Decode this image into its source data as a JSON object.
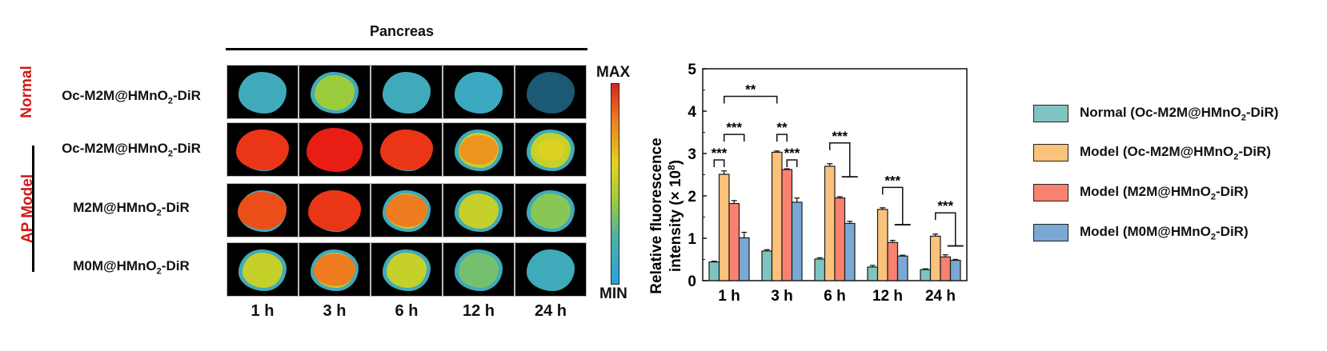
{
  "figure": {
    "left_panel": {
      "title": "Pancreas",
      "group_labels": {
        "normal": "Normal",
        "ap_model": "AP Model"
      },
      "rows": [
        {
          "pre": "Oc-M2M@HMnO",
          "sub": "2",
          "post": "-DiR",
          "group": "normal"
        },
        {
          "pre": "Oc-M2M@HMnO",
          "sub": "2",
          "post": "-DiR",
          "group": "ap_model"
        },
        {
          "pre": "M2M@HMnO",
          "sub": "2",
          "post": "-DiR",
          "group": "ap_model"
        },
        {
          "pre": "M0M@HMnO",
          "sub": "2",
          "post": "-DiR",
          "group": "ap_model"
        }
      ],
      "time_points": [
        "1 h",
        "3 h",
        "6 h",
        "12 h",
        "24 h"
      ],
      "intensity_levels": [
        [
          0.15,
          0.45,
          0.18,
          0.12,
          0.05
        ],
        [
          0.95,
          1.0,
          0.95,
          0.75,
          0.6
        ],
        [
          0.9,
          0.95,
          0.8,
          0.55,
          0.4
        ],
        [
          0.55,
          0.8,
          0.55,
          0.35,
          0.2
        ]
      ],
      "colorbar": {
        "max_label": "MAX",
        "min_label": "MIN"
      }
    }
  },
  "chart_data": {
    "type": "bar",
    "title": "",
    "xlabel": "",
    "ylabel": "Relative fluorescence intensity (× 10⁸)",
    "ylabel_line1": "Relative fluorescence",
    "ylabel_line2": "intensity (× 10",
    "ylabel_sup": "8",
    "ylabel_end": ")",
    "ylim": [
      0,
      5
    ],
    "yticks": [
      "0",
      "1",
      "2",
      "3",
      "4",
      "5"
    ],
    "grid": false,
    "legend_position": "right",
    "categories": [
      "1 h",
      "3 h",
      "6 h",
      "12 h",
      "24 h"
    ],
    "series": [
      {
        "name": "Normal (Oc-M2M@HMnO2-DiR)",
        "label_pre": "Normal (Oc-M2M@HMnO",
        "label_sub": "2",
        "label_post": "-DiR)",
        "color": "#7fc4c0",
        "values": [
          0.44,
          0.7,
          0.51,
          0.32,
          0.26
        ],
        "errors": [
          0.02,
          0.03,
          0.03,
          0.04,
          0.02
        ]
      },
      {
        "name": "Model (Oc-M2M@HMnO2-DiR)",
        "label_pre": "Model (Oc-M2M@HMnO",
        "label_sub": "2",
        "label_post": "-DiR)",
        "color": "#fbc27c",
        "values": [
          2.51,
          3.03,
          2.7,
          1.68,
          1.05
        ],
        "errors": [
          0.08,
          0.03,
          0.06,
          0.04,
          0.05
        ]
      },
      {
        "name": "Model (M2M@HMnO2-DiR)",
        "label_pre": "Model (M2M@HMnO",
        "label_sub": "2",
        "label_post": "-DiR)",
        "color": "#f98170",
        "values": [
          1.82,
          2.62,
          1.95,
          0.9,
          0.56
        ],
        "errors": [
          0.07,
          0.02,
          0.03,
          0.05,
          0.05
        ]
      },
      {
        "name": "Model (M0M@HMnO2-DiR)",
        "label_pre": "Model (M0M@HMnO",
        "label_sub": "2",
        "label_post": "-DiR)",
        "color": "#7aa8d4",
        "values": [
          1.01,
          1.85,
          1.35,
          0.58,
          0.48
        ],
        "errors": [
          0.13,
          0.1,
          0.05,
          0.02,
          0.02
        ]
      }
    ],
    "annotations": [
      {
        "text": "***",
        "type": "bracket",
        "from": [
          0,
          0
        ],
        "to": [
          0,
          1
        ],
        "y": 2.85
      },
      {
        "text": "***",
        "type": "bracket",
        "from": [
          0,
          1
        ],
        "to": [
          0,
          3
        ],
        "y": 3.45
      },
      {
        "text": "**",
        "type": "bracket",
        "from": [
          0,
          1
        ],
        "to": [
          1,
          1
        ],
        "y": 4.35
      },
      {
        "text": "**",
        "type": "bracket",
        "from": [
          1,
          1
        ],
        "to": [
          1,
          2
        ],
        "y": 3.45
      },
      {
        "text": "***",
        "type": "bracket",
        "from": [
          1,
          2
        ],
        "to": [
          1,
          3
        ],
        "y": 2.85
      },
      {
        "text": "***",
        "type": "step",
        "from": [
          2,
          1
        ],
        "to": [
          2,
          3
        ],
        "y": 3.25,
        "end_y": 2.45
      },
      {
        "text": "***",
        "type": "step",
        "from": [
          3,
          1
        ],
        "to": [
          3,
          3
        ],
        "y": 2.2,
        "end_y": 1.32
      },
      {
        "text": "***",
        "type": "step",
        "from": [
          4,
          1
        ],
        "to": [
          4,
          3
        ],
        "y": 1.6,
        "end_y": 0.82
      }
    ]
  }
}
